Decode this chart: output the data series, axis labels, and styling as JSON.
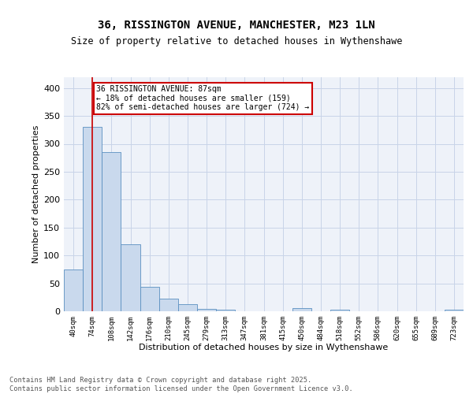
{
  "title_line1": "36, RISSINGTON AVENUE, MANCHESTER, M23 1LN",
  "title_line2": "Size of property relative to detached houses in Wythenshawe",
  "xlabel": "Distribution of detached houses by size in Wythenshawe",
  "ylabel": "Number of detached properties",
  "bin_labels": [
    "40sqm",
    "74sqm",
    "108sqm",
    "142sqm",
    "176sqm",
    "210sqm",
    "245sqm",
    "279sqm",
    "313sqm",
    "347sqm",
    "381sqm",
    "415sqm",
    "450sqm",
    "484sqm",
    "518sqm",
    "552sqm",
    "586sqm",
    "620sqm",
    "655sqm",
    "689sqm",
    "723sqm"
  ],
  "bar_values": [
    75,
    330,
    285,
    120,
    44,
    23,
    13,
    4,
    3,
    0,
    0,
    0,
    5,
    0,
    3,
    0,
    0,
    0,
    0,
    0,
    3
  ],
  "bar_color": "#c9d9ed",
  "bar_edge_color": "#5a8fc0",
  "red_line_x": 1,
  "annotation_text": "36 RISSINGTON AVENUE: 87sqm\n← 18% of detached houses are smaller (159)\n82% of semi-detached houses are larger (724) →",
  "annotation_box_color": "white",
  "annotation_box_edge": "#cc0000",
  "red_line_color": "#cc0000",
  "ylim": [
    0,
    420
  ],
  "yticks": [
    0,
    50,
    100,
    150,
    200,
    250,
    300,
    350,
    400
  ],
  "footer_text": "Contains HM Land Registry data © Crown copyright and database right 2025.\nContains public sector information licensed under the Open Government Licence v3.0.",
  "bg_color": "#eef2f9",
  "grid_color": "#c8d4e8"
}
